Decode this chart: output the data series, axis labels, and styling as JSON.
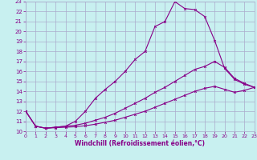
{
  "xlabel": "Windchill (Refroidissement éolien,°C)",
  "xlim": [
    0,
    23
  ],
  "ylim": [
    10,
    23
  ],
  "xticks": [
    0,
    1,
    2,
    3,
    4,
    5,
    6,
    7,
    8,
    9,
    10,
    11,
    12,
    13,
    14,
    15,
    16,
    17,
    18,
    19,
    20,
    21,
    22,
    23
  ],
  "yticks": [
    10,
    11,
    12,
    13,
    14,
    15,
    16,
    17,
    18,
    19,
    20,
    21,
    22,
    23
  ],
  "background_color": "#c8f0f0",
  "grid_color": "#aaaacc",
  "line_color": "#880088",
  "line1_x": [
    0,
    1,
    2,
    3,
    4,
    5,
    6,
    7,
    8,
    9,
    10,
    11,
    12,
    13,
    14,
    15,
    16,
    17,
    18,
    19,
    20,
    21,
    22,
    23
  ],
  "line1_y": [
    12.0,
    10.5,
    10.3,
    10.4,
    10.5,
    11.0,
    12.0,
    13.3,
    14.2,
    15.0,
    16.0,
    17.2,
    18.0,
    20.5,
    21.0,
    23.0,
    22.3,
    22.2,
    21.5,
    19.1,
    16.3,
    15.2,
    14.7,
    14.4
  ],
  "line2_x": [
    0,
    1,
    2,
    3,
    4,
    5,
    6,
    7,
    8,
    9,
    10,
    11,
    12,
    13,
    14,
    15,
    16,
    17,
    18,
    19,
    20,
    21,
    22,
    23
  ],
  "line2_y": [
    12.0,
    10.5,
    10.3,
    10.4,
    10.5,
    10.6,
    10.8,
    11.1,
    11.4,
    11.8,
    12.3,
    12.8,
    13.3,
    13.9,
    14.4,
    15.0,
    15.6,
    16.2,
    16.5,
    17.0,
    16.4,
    15.3,
    14.8,
    14.4
  ],
  "line3_x": [
    0,
    1,
    2,
    3,
    4,
    5,
    6,
    7,
    8,
    9,
    10,
    11,
    12,
    13,
    14,
    15,
    16,
    17,
    18,
    19,
    20,
    21,
    22,
    23
  ],
  "line3_y": [
    12.0,
    10.5,
    10.3,
    10.35,
    10.4,
    10.45,
    10.55,
    10.7,
    10.9,
    11.1,
    11.4,
    11.7,
    12.0,
    12.4,
    12.8,
    13.2,
    13.6,
    14.0,
    14.3,
    14.5,
    14.2,
    13.9,
    14.1,
    14.4
  ]
}
